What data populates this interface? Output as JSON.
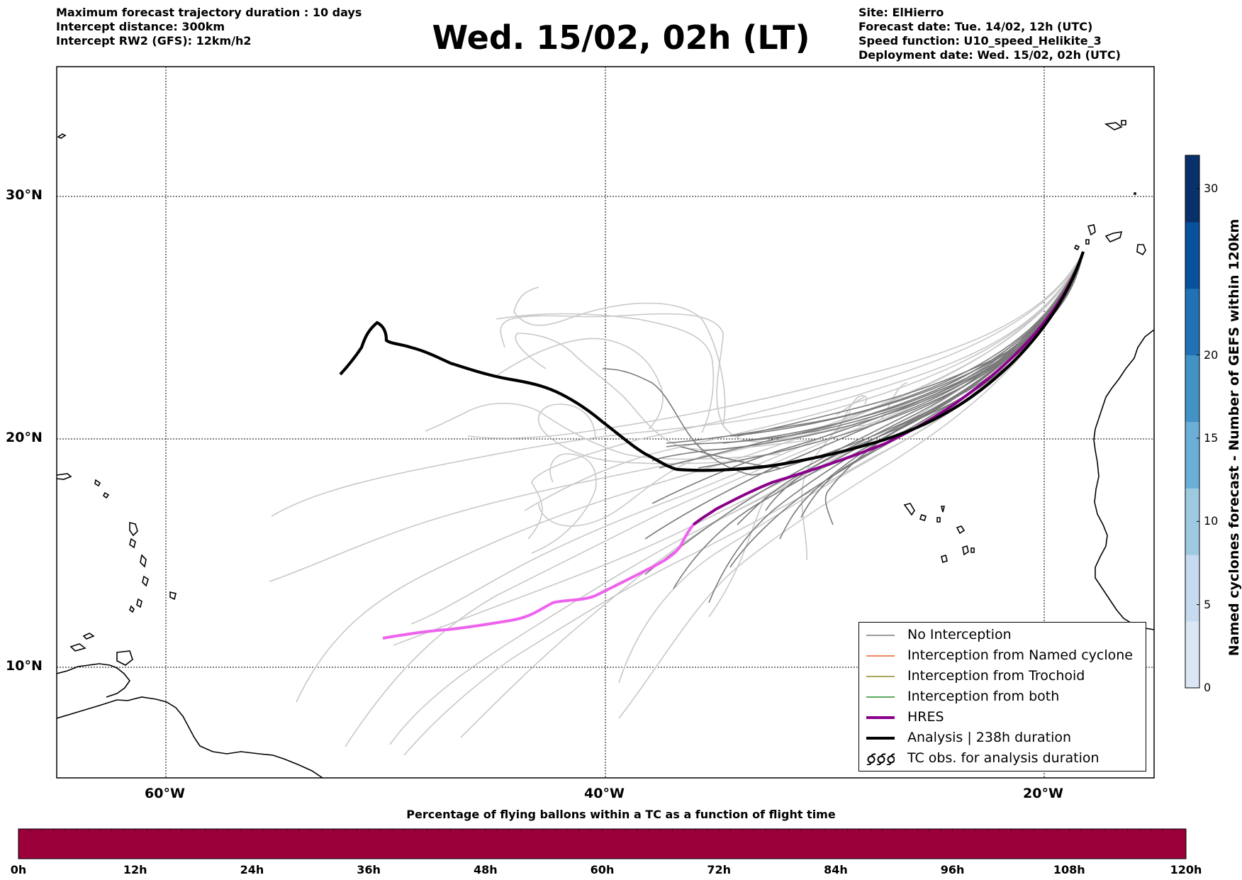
{
  "header_left": [
    "Maximum forecast trajectory duration : 10 days",
    "Intercept distance: 300km",
    "Intercept RW2 (GFS):  12km/h2"
  ],
  "title": "Wed. 15/02, 02h (LT)",
  "header_right": [
    "Site: ElHierro",
    "Forecast date: Tue. 14/02, 12h (UTC)",
    "Speed function: U10_speed_Helikite_3",
    "Deployment date: Wed. 15/02, 02h (UTC)"
  ],
  "map": {
    "lat_labels": [
      "30°N",
      "20°N",
      "10°N"
    ],
    "lon_labels": [
      "60°W",
      "40°W",
      "20°W"
    ],
    "lat_ticks": [
      30,
      20,
      10
    ],
    "lon_ticks": [
      -60,
      -40,
      -20
    ],
    "extent": {
      "lon_min": -65,
      "lon_max": -15,
      "lat_min": 4.7,
      "lat_max": 35.3
    }
  },
  "legend": [
    {
      "label": "No Interception",
      "color": "#7a7a7a",
      "icon": "thin-line"
    },
    {
      "label": "Interception from Named cyclone",
      "color": "#e8622a",
      "icon": "thin-line"
    },
    {
      "label": "Interception from Trochoid",
      "color": "#8a8a2a",
      "icon": "thin-line"
    },
    {
      "label": "Interception from both",
      "color": "#2a8a2a",
      "icon": "thin-line"
    },
    {
      "label": "HRES",
      "color": "#8b008b",
      "icon": "thick-line"
    },
    {
      "label": "Analysis | 238h duration",
      "color": "#000000",
      "icon": "thick-line"
    },
    {
      "label": "TC obs. for analysis duration",
      "color": "#000000",
      "icon": "cyclone-symbols"
    }
  ],
  "colorbar_right": {
    "label": "Named cyclones forecast - Number of GEFS within 120km",
    "ticks": [
      "0",
      "5",
      "10",
      "15",
      "20",
      "30"
    ],
    "tick_values": [
      0,
      5,
      10,
      15,
      20,
      30
    ],
    "max": 32,
    "colors": [
      "#dbe7f4",
      "#c6dbef",
      "#9ecae1",
      "#6baed6",
      "#4292c6",
      "#2171b5",
      "#08519c",
      "#08306b"
    ]
  },
  "colorbar_bottom": {
    "title": "Percentage of flying ballons within a TC as a function of flight time",
    "ticks": [
      "0h",
      "12h",
      "24h",
      "36h",
      "48h",
      "60h",
      "72h",
      "84h",
      "96h",
      "108h",
      "120h"
    ],
    "fill_color": "#9b003b"
  }
}
